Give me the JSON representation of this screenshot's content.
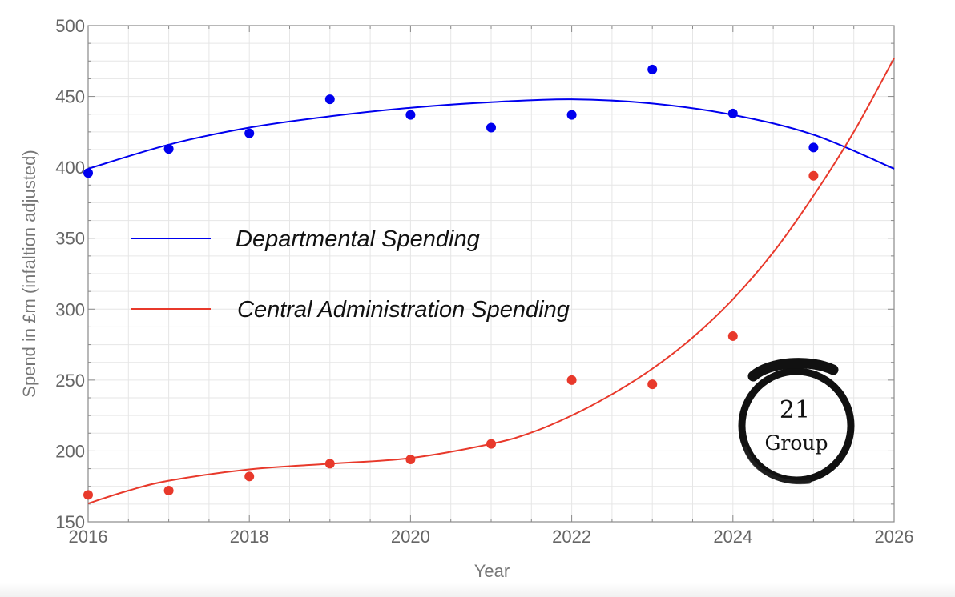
{
  "chart_data": {
    "type": "scatter",
    "title": "",
    "xlabel": "Year",
    "ylabel": "Spend in £m (infaltion adjusted)",
    "xlim": [
      2016,
      2026
    ],
    "ylim": [
      150,
      500
    ],
    "x_ticks": [
      2016,
      2018,
      2020,
      2022,
      2024,
      2026
    ],
    "y_ticks": [
      150,
      200,
      250,
      300,
      350,
      400,
      450,
      500
    ],
    "grid": true,
    "legend_position": "left-middle",
    "series": [
      {
        "name": "Departmental Spending",
        "color": "#0000ee",
        "x": [
          2016,
          2017,
          2018,
          2019,
          2020,
          2021,
          2022,
          2023,
          2024,
          2025
        ],
        "y": [
          396,
          413,
          424,
          448,
          437,
          428,
          437,
          469,
          438,
          414
        ],
        "trend_x": [
          2016,
          2017,
          2018,
          2019,
          2020,
          2021,
          2022,
          2023,
          2024,
          2025,
          2026
        ],
        "trend_y": [
          399,
          416,
          428,
          436,
          442,
          446,
          448,
          445,
          437,
          423,
          399
        ]
      },
      {
        "name": "Central Administration Spending",
        "color": "#e8392b",
        "x": [
          2016,
          2017,
          2018,
          2019,
          2020,
          2021,
          2022,
          2023,
          2024,
          2025
        ],
        "y": [
          169,
          172,
          182,
          191,
          194,
          205,
          250,
          247,
          281,
          394
        ],
        "trend_x": [
          2016,
          2016.5,
          2017,
          2018,
          2019,
          2020,
          2021,
          2021.5,
          2022,
          2022.5,
          2023,
          2023.5,
          2024,
          2024.5,
          2025,
          2025.5,
          2026
        ],
        "trend_y": [
          163,
          172,
          179,
          187,
          191,
          195,
          205,
          213,
          225,
          240,
          258,
          280,
          307,
          340,
          380,
          425,
          477
        ]
      }
    ]
  },
  "logo": {
    "line1": "21",
    "line2": "Group"
  }
}
